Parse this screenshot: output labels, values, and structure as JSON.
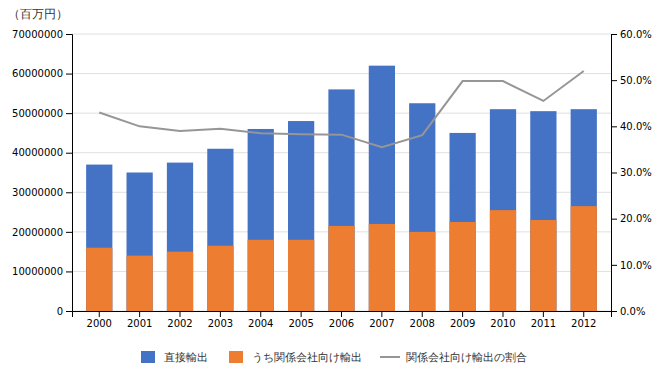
{
  "chart_data": {
    "type": "bar",
    "categories": [
      "2000",
      "2001",
      "2002",
      "2003",
      "2004",
      "2005",
      "2006",
      "2007",
      "2008",
      "2009",
      "2010",
      "2011",
      "2012"
    ],
    "series": [
      {
        "name": "直接輸出",
        "type": "bar",
        "color": "#4472C4",
        "values": [
          37000000,
          35000000,
          37500000,
          41000000,
          46000000,
          48000000,
          56000000,
          62000000,
          52500000,
          45000000,
          51000000,
          50500000,
          51000000
        ]
      },
      {
        "name": "うち関係会社向け輸出",
        "type": "bar",
        "color": "#ED7D31",
        "values": [
          16000000,
          14000000,
          15000000,
          16500000,
          18000000,
          18000000,
          21500000,
          22000000,
          20000000,
          22500000,
          25500000,
          23000000,
          26500000
        ]
      },
      {
        "name": "関係会社向け輸出の割合",
        "type": "line",
        "color": "#969696",
        "axis": "y2",
        "values": [
          0.43,
          0.4,
          0.39,
          0.395,
          0.385,
          0.383,
          0.382,
          0.355,
          0.381,
          0.498,
          0.498,
          0.455,
          0.52
        ]
      }
    ],
    "ylim": [
      0,
      70000000
    ],
    "yticks": [
      0,
      10000000,
      20000000,
      30000000,
      40000000,
      50000000,
      60000000,
      70000000
    ],
    "y2lim": [
      0.0,
      0.6
    ],
    "y2ticks": [
      {
        "value": 0.0,
        "label": "0.0%"
      },
      {
        "value": 0.1,
        "label": "10.0%"
      },
      {
        "value": 0.2,
        "label": "20.0%"
      },
      {
        "value": 0.3,
        "label": "30.0%"
      },
      {
        "value": 0.4,
        "label": "40.0%"
      },
      {
        "value": 0.5,
        "label": "50.0%"
      },
      {
        "value": 0.6,
        "label": "60.0%"
      }
    ],
    "stacked": false,
    "grid": true,
    "legend": "bottom",
    "annotations": [
      "（百万円）"
    ]
  }
}
